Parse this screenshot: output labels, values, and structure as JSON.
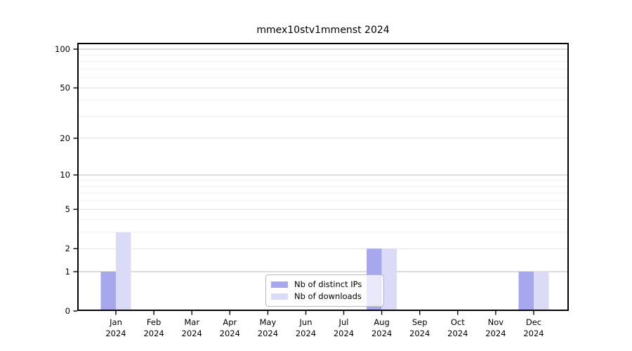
{
  "chart_data": {
    "type": "bar",
    "title": "mmex10stv1mmenst 2024",
    "categories": [
      "Jan 2024",
      "Feb 2024",
      "Mar 2024",
      "Apr 2024",
      "May 2024",
      "Jun 2024",
      "Jul 2024",
      "Aug 2024",
      "Sep 2024",
      "Oct 2024",
      "Nov 2024",
      "Dec 2024"
    ],
    "series": [
      {
        "name": "Nb of distinct IPs",
        "color": "#a7a7ee",
        "values": [
          1,
          0,
          0,
          0,
          0,
          0,
          0,
          2,
          0,
          0,
          0,
          1
        ]
      },
      {
        "name": "Nb of downloads",
        "color": "#dbdbf7",
        "values": [
          3,
          0,
          0,
          0,
          0,
          0,
          0,
          2,
          0,
          0,
          0,
          1
        ]
      }
    ],
    "yscale": "log1p",
    "ylim": [
      0,
      100
    ],
    "yticks": [
      0,
      1,
      2,
      5,
      10,
      20,
      50,
      100
    ],
    "yticks_minor": [
      3,
      4,
      6,
      7,
      8,
      9,
      30,
      40,
      60,
      70,
      80,
      90
    ],
    "grid": "horizontal",
    "legend": {
      "position": "lower center",
      "labels": [
        "Nb of distinct IPs",
        "Nb of downloads"
      ]
    }
  },
  "colors": {
    "background": "#ffffff",
    "spine": "#000000",
    "tick": "#000000",
    "text": "#000000",
    "grid_minor": "#efefef",
    "grid_major": "#e4e4e4",
    "grid_decade": "#c6c6c6",
    "legend_border": "#b9b9b9"
  }
}
